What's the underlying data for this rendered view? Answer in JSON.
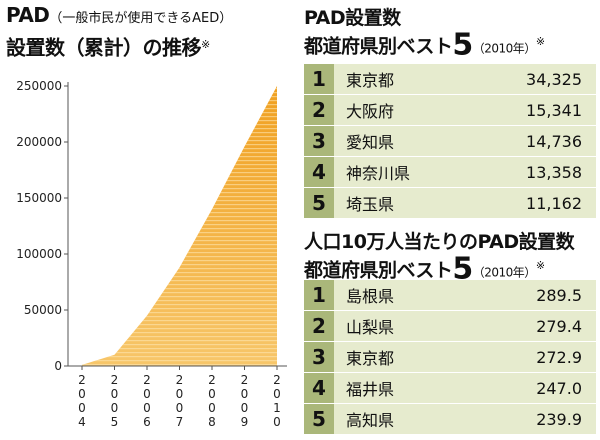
{
  "chart": {
    "title_line1_strong": "PAD",
    "title_line1_small": "（一般市民が使用できるAED）",
    "title_line2": "設置数（累計）の推移",
    "title_note": "※"
  },
  "chart_data": {
    "type": "area",
    "x": [
      "2004",
      "2005",
      "2006",
      "2007",
      "2008",
      "2009",
      "2010"
    ],
    "values": [
      1000,
      10000,
      45000,
      88000,
      140000,
      196000,
      250000
    ],
    "ylim": [
      0,
      250000
    ],
    "yticks": [
      "0",
      "50000",
      "100000",
      "150000",
      "200000",
      "250000"
    ],
    "colors": {
      "fill_top": "#f7c66a",
      "fill_bottom": "#f0a020",
      "stripe": "#ffe9b8"
    }
  },
  "ranking_total": {
    "title_line1": "PAD設置数",
    "title_line2_prefix": "都道府県別ベスト",
    "title_big": "5",
    "title_year": "（2010年）",
    "title_note": "※",
    "rows": [
      {
        "rank": "1",
        "pref": "東京都",
        "value": "34,325"
      },
      {
        "rank": "2",
        "pref": "大阪府",
        "value": "15,341"
      },
      {
        "rank": "3",
        "pref": "愛知県",
        "value": "14,736"
      },
      {
        "rank": "4",
        "pref": "神奈川県",
        "value": "13,358"
      },
      {
        "rank": "5",
        "pref": "埼玉県",
        "value": "11,162"
      }
    ]
  },
  "ranking_per_capita": {
    "title_line1": "人口10万人当たりのPAD設置数",
    "title_line2_prefix": "都道府県別ベスト",
    "title_big": "5",
    "title_year": "（2010年）",
    "title_note": "※",
    "rows": [
      {
        "rank": "1",
        "pref": "島根県",
        "value": "289.5"
      },
      {
        "rank": "2",
        "pref": "山梨県",
        "value": "279.4"
      },
      {
        "rank": "3",
        "pref": "東京都",
        "value": "272.9"
      },
      {
        "rank": "4",
        "pref": "福井県",
        "value": "247.0"
      },
      {
        "rank": "5",
        "pref": "高知県",
        "value": "239.9"
      }
    ]
  }
}
